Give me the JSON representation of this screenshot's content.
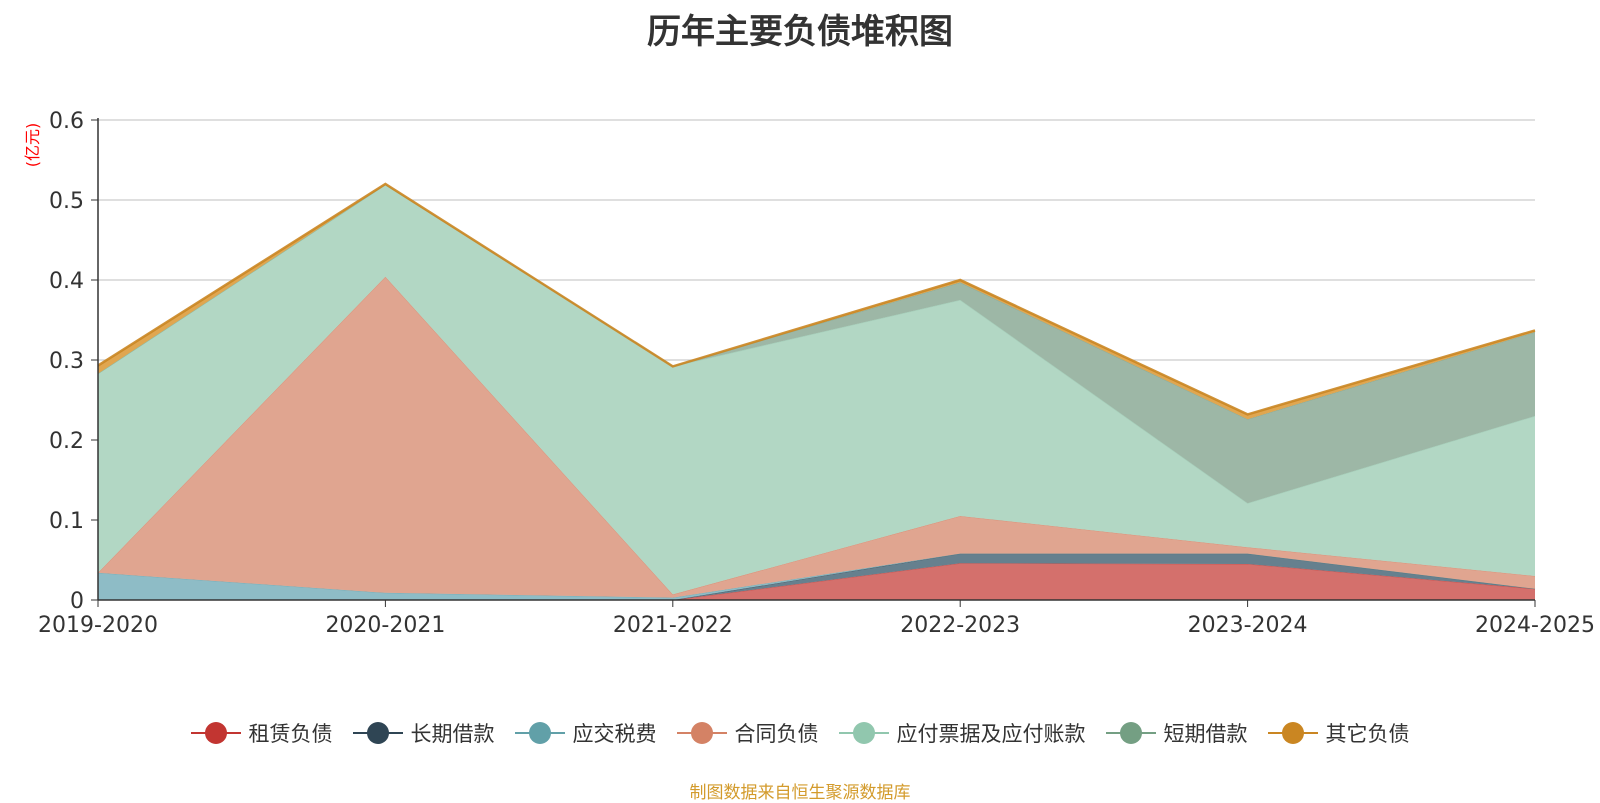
{
  "chart_data": {
    "type": "area",
    "stacked": true,
    "title": "历年主要负债堆积图",
    "ylabel": "(亿元)",
    "ylim": [
      0,
      0.6
    ],
    "yticks": [
      "0",
      "0.1",
      "0.2",
      "0.3",
      "0.4",
      "0.5",
      "0.6"
    ],
    "grid": true,
    "legend_position": "bottom",
    "categories": [
      "2019-2020",
      "2020-2021",
      "2021-2022",
      "2022-2023",
      "2023-2024",
      "2024-2025"
    ],
    "series": [
      {
        "name": "租赁负债",
        "color": "#c23531",
        "fill": "#d4706c",
        "values": [
          0,
          0,
          0,
          0.046,
          0.045,
          0.014
        ]
      },
      {
        "name": "长期借款",
        "color": "#2f4554",
        "fill": "#66808e",
        "values": [
          0,
          0,
          0,
          0.012,
          0.013,
          0
        ]
      },
      {
        "name": "应交税费",
        "color": "#61a0a8",
        "fill": "#8ebcc6",
        "values": [
          0.034,
          0.009,
          0.003,
          0,
          0,
          0
        ]
      },
      {
        "name": "合同负债",
        "color": "#d48265",
        "fill": "#e0a590",
        "values": [
          0,
          0.395,
          0.004,
          0.047,
          0.008,
          0.016
        ]
      },
      {
        "name": "应付票据及应付账款",
        "color": "#91c7ae",
        "fill": "#b2d7c4",
        "values": [
          0.249,
          0.115,
          0.285,
          0.27,
          0.055,
          0.2
        ]
      },
      {
        "name": "短期借款",
        "color": "#749f83",
        "fill": "#9db7a6",
        "values": [
          0,
          0,
          0,
          0.022,
          0.105,
          0.105
        ]
      },
      {
        "name": "其它负债",
        "color": "#ca8622",
        "fill": "#e0a650",
        "values": [
          0.01,
          0.001,
          0,
          0.003,
          0.006,
          0.002
        ]
      }
    ]
  },
  "source_note": "制图数据来自恒生聚源数据库"
}
